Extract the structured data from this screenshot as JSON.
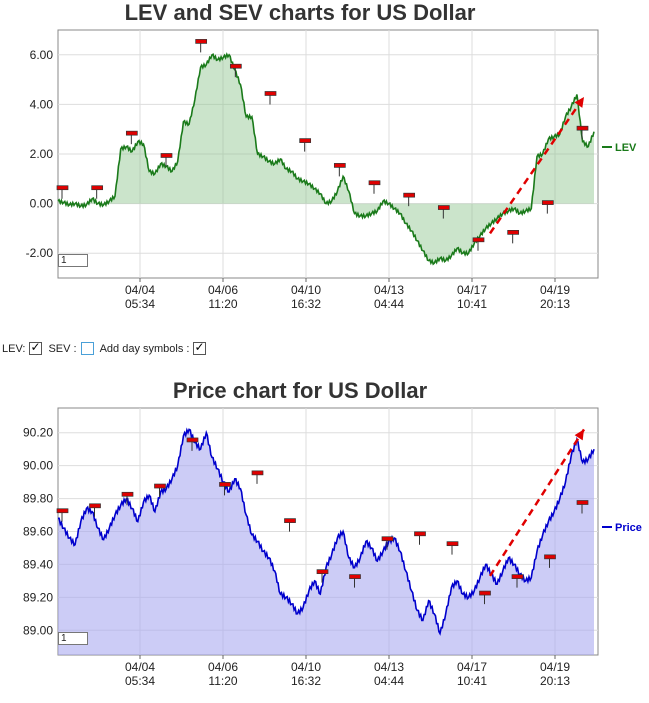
{
  "chart_data": [
    {
      "type": "area",
      "title": "LEV and SEV charts for US Dollar",
      "ylim": [
        -3.0,
        7.0
      ],
      "y_ticks": [
        "6.00",
        "4.00",
        "2.00",
        "0.00",
        "-2.00"
      ],
      "x_ticks": [
        {
          "date": "04/04",
          "time": "05:34"
        },
        {
          "date": "04/06",
          "time": "11:20"
        },
        {
          "date": "04/10",
          "time": "16:32"
        },
        {
          "date": "04/13",
          "time": "04:44"
        },
        {
          "date": "04/17",
          "time": "10:41"
        },
        {
          "date": "04/19",
          "time": "20:13"
        }
      ],
      "series": [
        {
          "name": "LEV",
          "color": "#1a7a1a",
          "values": [
            0.1,
            0.05,
            -0.05,
            0.0,
            -0.1,
            -0.05,
            0.2,
            0.0,
            -0.05,
            0.1,
            0.3,
            2.2,
            2.3,
            2.1,
            2.5,
            2.4,
            1.3,
            1.2,
            1.6,
            1.5,
            1.3,
            1.7,
            3.3,
            3.2,
            4.2,
            5.5,
            5.6,
            6.0,
            5.8,
            5.9,
            6.0,
            5.4,
            4.8,
            3.5,
            3.5,
            2.0,
            1.9,
            1.7,
            1.6,
            1.8,
            1.4,
            1.3,
            1.0,
            0.9,
            0.8,
            0.6,
            0.4,
            0.0,
            0.1,
            0.5,
            1.1,
            0.5,
            -0.4,
            -0.5,
            -0.5,
            -0.4,
            -0.3,
            0.1,
            0.0,
            -0.2,
            -0.4,
            -0.8,
            -1.1,
            -1.5,
            -1.9,
            -2.3,
            -2.4,
            -2.2,
            -2.3,
            -2.1,
            -1.8,
            -2.0,
            -2.0,
            -1.6,
            -1.3,
            -1.0,
            -0.8,
            -0.6,
            -0.4,
            -0.3,
            -0.2,
            -0.4,
            -0.3,
            -0.2,
            1.9,
            2.0,
            2.6,
            2.7,
            2.8,
            3.5,
            3.9,
            4.4,
            2.5,
            2.3,
            2.9
          ]
        },
        {
          "name": "SEV",
          "color": "#1a7a1a",
          "values": []
        }
      ],
      "day_symbols": [
        0.6,
        0.6,
        2.8,
        1.9,
        6.5,
        5.5,
        4.4,
        2.5,
        1.5,
        0.8,
        0.3,
        -0.2,
        -1.5,
        -1.2,
        0.0,
        3.0
      ],
      "trend_arrow": {
        "from": -1.2,
        "to": 4.3
      }
    },
    {
      "type": "area",
      "title": "Price chart for US Dollar",
      "ylim": [
        88.85,
        90.35
      ],
      "y_ticks": [
        "90.20",
        "90.00",
        "89.80",
        "89.60",
        "89.40",
        "89.20",
        "89.00"
      ],
      "x_ticks": [
        {
          "date": "04/04",
          "time": "05:34"
        },
        {
          "date": "04/06",
          "time": "11:20"
        },
        {
          "date": "04/10",
          "time": "16:32"
        },
        {
          "date": "04/13",
          "time": "04:44"
        },
        {
          "date": "04/17",
          "time": "10:41"
        },
        {
          "date": "04/19",
          "time": "20:13"
        }
      ],
      "series": [
        {
          "name": "Price",
          "color": "#0000cc",
          "values": [
            89.68,
            89.62,
            89.56,
            89.52,
            89.66,
            89.74,
            89.72,
            89.62,
            89.55,
            89.62,
            89.7,
            89.76,
            89.8,
            89.74,
            89.66,
            89.78,
            89.82,
            89.72,
            89.84,
            89.86,
            89.92,
            90.0,
            90.18,
            90.22,
            90.14,
            90.1,
            90.2,
            90.05,
            89.98,
            89.9,
            89.84,
            89.92,
            89.86,
            89.7,
            89.58,
            89.54,
            89.48,
            89.44,
            89.36,
            89.22,
            89.2,
            89.16,
            89.1,
            89.14,
            89.24,
            89.3,
            89.22,
            89.38,
            89.46,
            89.56,
            89.6,
            89.44,
            89.38,
            89.44,
            89.54,
            89.5,
            89.42,
            89.48,
            89.54,
            89.56,
            89.48,
            89.36,
            89.24,
            89.12,
            89.06,
            89.18,
            89.1,
            88.98,
            89.1,
            89.26,
            89.3,
            89.22,
            89.2,
            89.24,
            89.32,
            89.4,
            89.34,
            89.28,
            89.36,
            89.44,
            89.4,
            89.34,
            89.3,
            89.32,
            89.48,
            89.58,
            89.66,
            89.72,
            89.8,
            89.9,
            90.06,
            90.16,
            90.02,
            90.04,
            90.1
          ]
        }
      ],
      "day_symbols": [
        89.72,
        89.75,
        89.82,
        89.87,
        90.15,
        89.88,
        89.95,
        89.66,
        89.35,
        89.32,
        89.55,
        89.58,
        89.52,
        89.22,
        89.32,
        89.44,
        89.77
      ],
      "trend_arrow": {
        "from": 89.33,
        "to": 90.22
      }
    }
  ],
  "controls": {
    "lev_label": "LEV:",
    "sev_label": "SEV :",
    "day_symbols_label": "Add day symbols :",
    "lev_checked": true,
    "sev_checked": false,
    "day_symbols_checked": true
  },
  "zoom_value": "1"
}
